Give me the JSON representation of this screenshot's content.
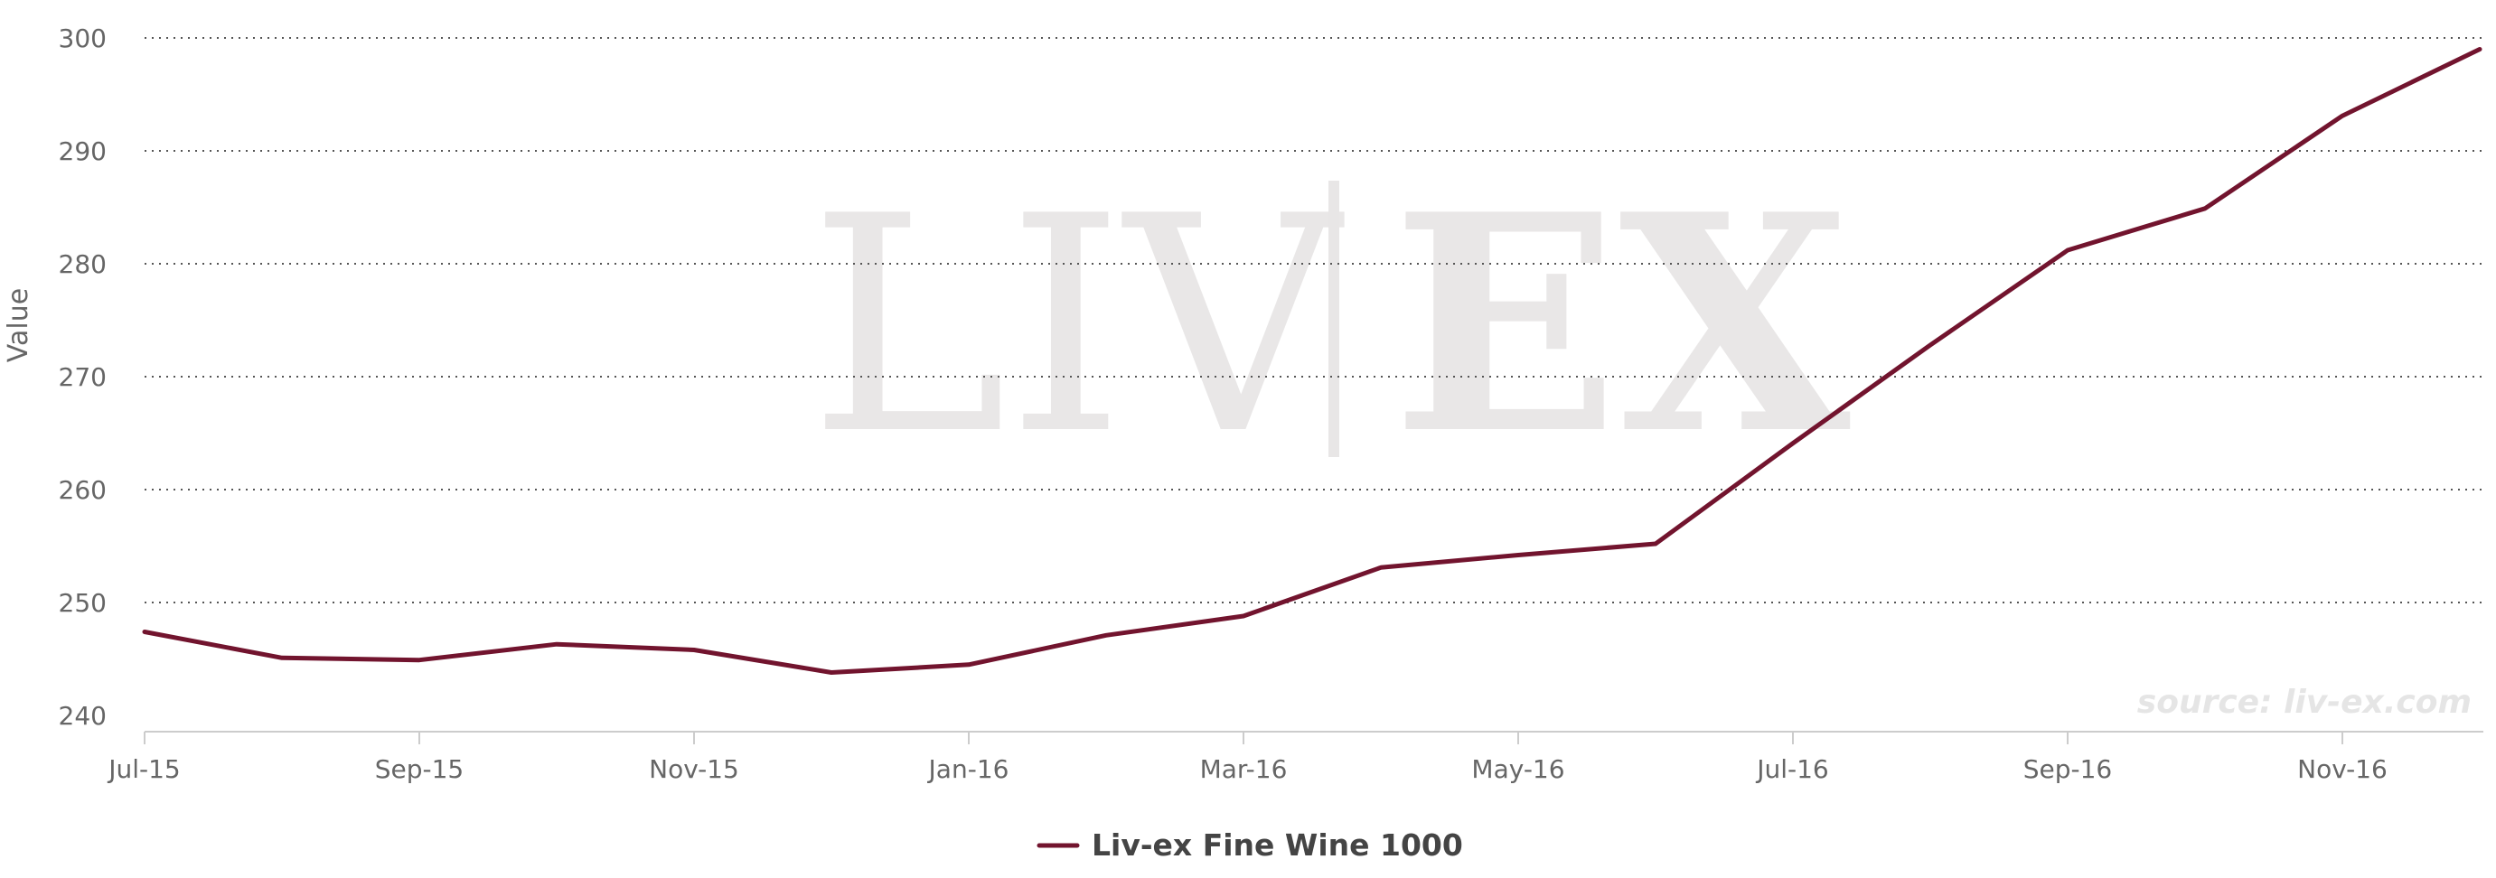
{
  "chart_data": {
    "type": "line",
    "title": "",
    "ylabel": "Value",
    "xlabel": "",
    "ylim": [
      240,
      300
    ],
    "yticks": [
      "240",
      "250",
      "260",
      "270",
      "280",
      "290",
      "300"
    ],
    "x": [
      "Jul-15",
      "Aug-15",
      "Sep-15",
      "Oct-15",
      "Nov-15",
      "Dec-15",
      "Jan-16",
      "Feb-16",
      "Mar-16",
      "Apr-16",
      "May-16",
      "Jun-16",
      "Jul-16",
      "Aug-16",
      "Sep-16",
      "Oct-16",
      "Nov-16",
      "Dec-16"
    ],
    "xticks": [
      "Jul-15",
      "Sep-15",
      "Nov-15",
      "Jan-16",
      "Mar-16",
      "May-16",
      "Jul-16",
      "Sep-16",
      "Nov-16"
    ],
    "series": [
      {
        "name": "Liv-ex Fine Wine 1000",
        "color": "#72142e",
        "values": [
          247.4,
          245.1,
          244.9,
          246.3,
          245.8,
          243.8,
          244.5,
          247.1,
          248.8,
          253.1,
          254.2,
          255.2,
          264.1,
          272.8,
          281.2,
          284.9,
          293.1,
          299.0
        ]
      }
    ],
    "grid": true,
    "legend": "bottom-center"
  },
  "watermark": {
    "left": "LIV",
    "right": "EX"
  },
  "source_note": "source: liv-ex.com",
  "colors": {
    "series": "#72142e",
    "grid": "#555555",
    "axis": "#cccccc",
    "watermark": "#e2e0e0"
  }
}
